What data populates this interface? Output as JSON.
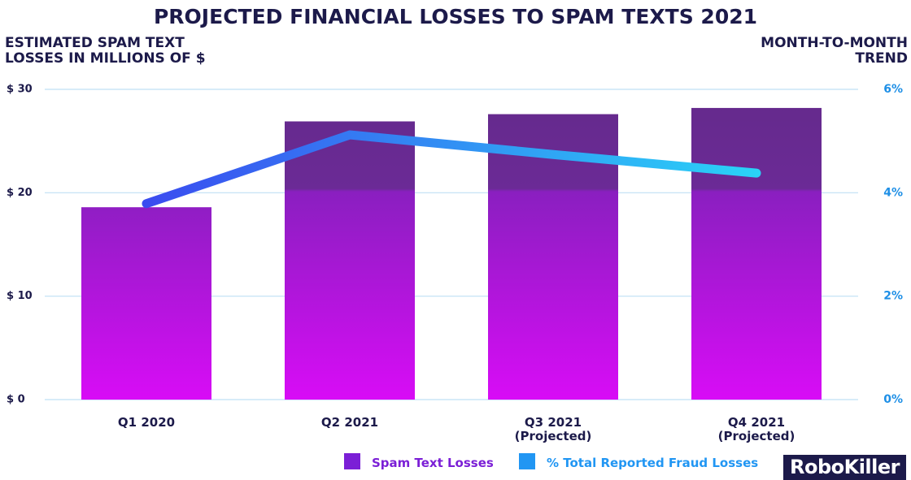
{
  "chart_data": {
    "type": "bar",
    "title": "PROJECTED FINANCIAL LOSSES TO SPAM TEXTS 2021",
    "y_label": "ESTIMATED SPAM TEXT\nLOSSES IN MILLIONS OF $",
    "y2_label": "MONTH-TO-MONTH\nTREND",
    "categories": [
      "Q1 2020",
      "Q2 2021",
      "Q3 2021\n(Projected)",
      "Q4 2021\n(Projected)"
    ],
    "series": [
      {
        "name": "Spam Text Losses",
        "type": "bar",
        "color": "#7b1fd6",
        "values": [
          18.6,
          26.9,
          27.6,
          28.2
        ]
      },
      {
        "name": "% Total Reported Fraud Losses",
        "type": "line",
        "axis": "y2",
        "color": "#2196f3",
        "values": [
          3.79,
          5.12,
          4.74,
          4.38
        ]
      }
    ],
    "ylim": [
      0,
      30
    ],
    "yticks": [
      {
        "value": 0,
        "label": "$ 0"
      },
      {
        "value": 10,
        "label": "$ 10"
      },
      {
        "value": 20,
        "label": "$ 20"
      },
      {
        "value": 30,
        "label": "$ 30"
      }
    ],
    "y2lim": [
      0,
      6
    ],
    "y2ticks": [
      {
        "value": 0,
        "label": "0%"
      },
      {
        "value": 2,
        "label": "2%"
      },
      {
        "value": 4,
        "label": "4%"
      },
      {
        "value": 6,
        "label": "6%"
      }
    ],
    "grid": true,
    "legend": "bottom",
    "logo": "RoboKiller"
  }
}
